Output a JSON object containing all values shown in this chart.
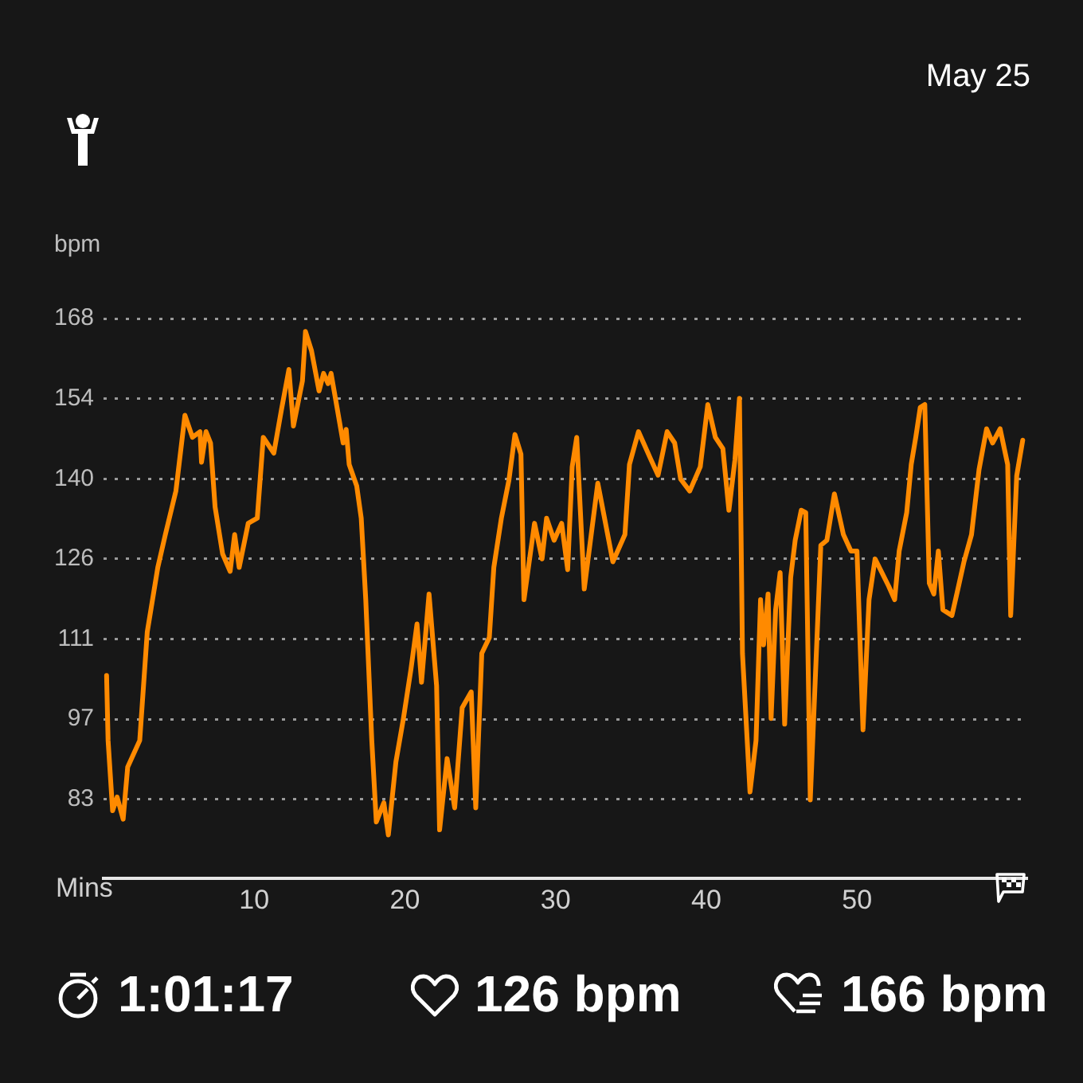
{
  "chart_data": {
    "type": "line",
    "title": "May 25",
    "ylabel": "bpm",
    "xlabel": "Mins",
    "x": [
      0.2,
      0.3,
      0.6,
      0.9,
      1.3,
      1.6,
      2.4,
      2.9,
      3.6,
      4.1,
      4.8,
      5.4,
      5.9,
      6.4,
      6.5,
      6.8,
      7.1,
      7.4,
      7.9,
      8.4,
      8.7,
      9.0,
      9.6,
      10.2,
      10.6,
      11.3,
      11.8,
      12.3,
      12.6,
      13.2,
      13.4,
      13.8,
      14.3,
      14.6,
      14.9,
      15.1,
      15.4,
      15.9,
      16.1,
      16.3,
      16.8,
      17.1,
      17.4,
      17.8,
      18.1,
      18.6,
      18.9,
      19.4,
      19.9,
      20.4,
      20.8,
      21.1,
      21.6,
      22.1,
      22.3,
      22.8,
      23.3,
      23.8,
      24.4,
      24.7,
      25.1,
      25.6,
      25.9,
      26.4,
      26.9,
      27.3,
      27.7,
      27.9,
      28.6,
      29.1,
      29.4,
      29.9,
      30.4,
      30.8,
      31.1,
      31.4,
      31.9,
      32.8,
      33.8,
      34.6,
      34.9,
      35.5,
      36.3,
      36.8,
      37.4,
      37.9,
      38.3,
      38.9,
      39.6,
      40.1,
      40.6,
      41.1,
      41.5,
      41.9,
      42.2,
      42.4,
      42.9,
      43.3,
      43.6,
      43.8,
      44.1,
      44.3,
      44.6,
      44.9,
      45.2,
      45.6,
      45.9,
      46.3,
      46.6,
      46.9,
      47.6,
      48.0,
      48.5,
      49.1,
      49.6,
      50.0,
      50.4,
      50.8,
      51.2,
      52.1,
      52.5,
      52.8,
      53.3,
      53.6,
      53.9,
      54.2,
      54.5,
      54.8,
      55.1,
      55.4,
      55.7,
      56.3,
      56.7,
      57.1,
      57.6,
      58.1,
      58.6,
      59.0,
      59.5,
      60.0,
      60.2,
      60.6,
      61.0
    ],
    "values": [
      104.9,
      93.4,
      81,
      83.4,
      79.5,
      88.7,
      93.4,
      112.6,
      124,
      129.8,
      137.5,
      150.9,
      147,
      148,
      142.6,
      148,
      146,
      134.7,
      126.4,
      123.3,
      129.8,
      124,
      131.8,
      132.7,
      147,
      144.2,
      151.8,
      159,
      149,
      157,
      165.7,
      162.3,
      155.2,
      158.3,
      156.5,
      158.3,
      153.7,
      146,
      148.4,
      142.2,
      138.4,
      132.7,
      118.3,
      93.4,
      79,
      82.4,
      76.7,
      89.6,
      97.3,
      106,
      114,
      103.7,
      119.3,
      103.1,
      77.6,
      90.2,
      81.5,
      99.2,
      102,
      81.5,
      108.8,
      111.6,
      124,
      132.7,
      139.4,
      147.5,
      144,
      118.3,
      131.8,
      125.5,
      132.7,
      128.8,
      131.8,
      123.6,
      141.8,
      147,
      120.2,
      138.9,
      125,
      129.8,
      142.2,
      148,
      143.2,
      140.3,
      148,
      146,
      139.6,
      137.5,
      141.8,
      152.8,
      147,
      145,
      134.1,
      143,
      153.9,
      108.8,
      84.3,
      93.4,
      118.3,
      110.3,
      119.3,
      97.3,
      116.5,
      123.1,
      96.3,
      122.2,
      128.8,
      134.1,
      133.7,
      82.9,
      127.9,
      128.8,
      137,
      129.8,
      126.9,
      126.9,
      95.3,
      118.3,
      125.5,
      120.7,
      118.3,
      126.9,
      133.7,
      142.2,
      147,
      152.3,
      152.8,
      121.2,
      119.3,
      126.9,
      116.5,
      115.5,
      120.2,
      125,
      129.8,
      141.3,
      148.5,
      146,
      148.5,
      142.2,
      115.5,
      140.2,
      146.5
    ],
    "color": "#ff8a00",
    "xlim": [
      0,
      61.3
    ],
    "xticks": [
      10,
      20,
      30,
      40,
      50
    ],
    "ylim": [
      69,
      168
    ],
    "yticks": [
      {
        "value": 83,
        "label": "83"
      },
      {
        "value": 97.17,
        "label": "97"
      },
      {
        "value": 111.33,
        "label": "111"
      },
      {
        "value": 125.5,
        "label": "126"
      },
      {
        "value": 139.67,
        "label": "140"
      },
      {
        "value": 153.83,
        "label": "154"
      },
      {
        "value": 168,
        "label": "168"
      }
    ],
    "grid": "y",
    "legend": false,
    "annotations": [
      "1:01:17",
      "126 bpm",
      "166 bpm"
    ]
  }
}
